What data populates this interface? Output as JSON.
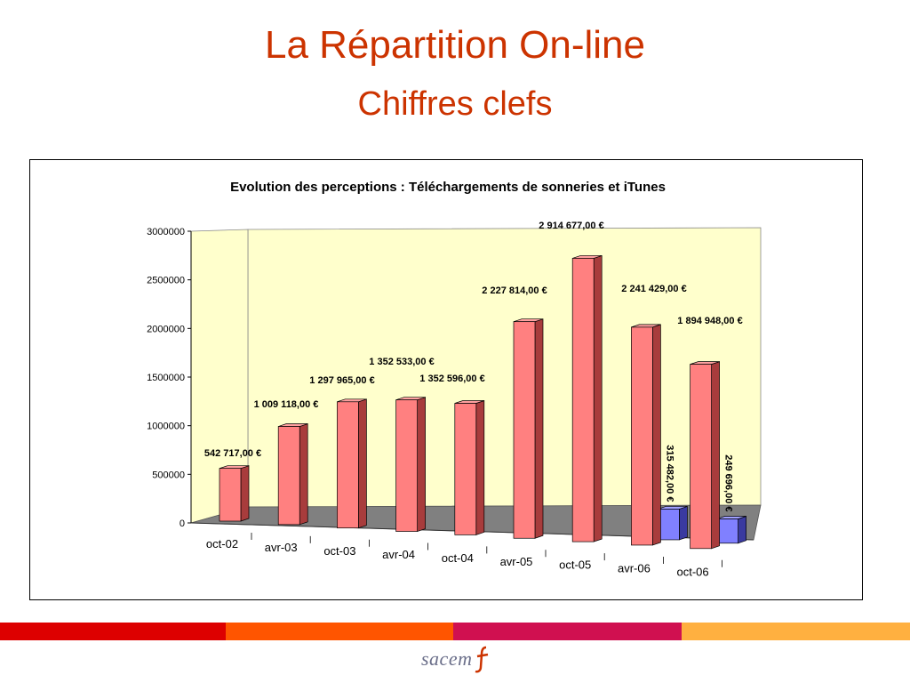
{
  "slide": {
    "title": "La Répartition On-line",
    "subtitle": "Chiffres clefs"
  },
  "logo": {
    "text": "sacem"
  },
  "colors": {
    "title": "#cc3300",
    "bar_red_front": "#ff8080",
    "bar_red_side": "#a83c3c",
    "bar_blue_front": "#8080ff",
    "bar_blue_side": "#3a3aa0",
    "plot_background": "#ffffcc",
    "floor": "#808080",
    "stripe_1": "#dd0000",
    "stripe_2": "#ff5500",
    "stripe_3": "#d01050",
    "stripe_4": "#ffb040"
  },
  "chart_data": {
    "type": "bar",
    "title": "Evolution des perceptions : Téléchargements de sonneries et iTunes",
    "xlabel": "",
    "ylabel": "",
    "ylim": [
      0,
      3000000
    ],
    "yticks": [
      "0",
      "500000",
      "1000000",
      "1500000",
      "2000000",
      "2500000",
      "3000000"
    ],
    "categories": [
      "oct-02",
      "avr-03",
      "oct-03",
      "avr-04",
      "oct-04",
      "avr-05",
      "oct-05",
      "avr-06",
      "oct-06"
    ],
    "grid": false,
    "legend": "none",
    "series": [
      {
        "values": [
          542717,
          1009118,
          1297965,
          1352533,
          1352596,
          2227814,
          2914677,
          2241429,
          1894948
        ],
        "labels": [
          "542 717,00 €",
          "1 009 118,00 €",
          "1 297 965,00 €",
          "1 352 533,00 €",
          "1 352 596,00 €",
          "2 227 814,00 €",
          "2 914 677,00 €",
          "2 241 429,00 €",
          "1 894 948,00 €"
        ]
      },
      {
        "values": [
          null,
          null,
          null,
          null,
          null,
          null,
          null,
          315482,
          249696
        ],
        "labels": [
          "",
          "",
          "",
          "",
          "",
          "",
          "",
          "315 482,00 €",
          "249 696,00 €"
        ]
      }
    ]
  }
}
